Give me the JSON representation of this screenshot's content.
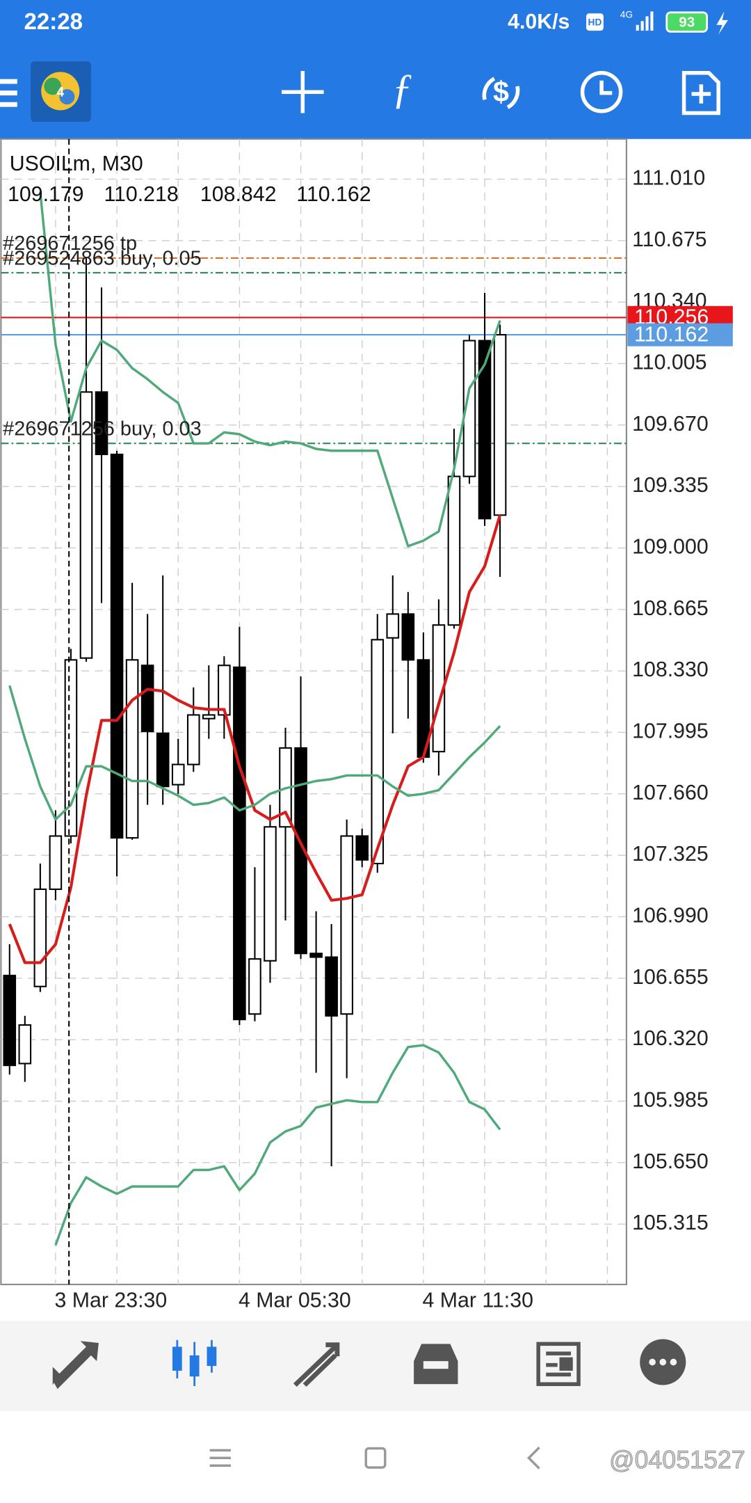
{
  "status_bar": {
    "time": "22:28",
    "speed": "4.0K/s",
    "hd": "HD",
    "network": "4G",
    "battery": "93"
  },
  "chart_data": {
    "type": "candlestick",
    "title": "USOILm, M30",
    "categories": [
      null,
      null,
      null,
      "3 Mar 23:30",
      null,
      null,
      null,
      null,
      null,
      null,
      null,
      null,
      null,
      null,
      null,
      "4 Mar 05:30",
      null,
      null,
      null,
      null,
      null,
      null,
      null,
      null,
      null,
      null,
      null,
      "4 Mar 11:30",
      null,
      null,
      null,
      null,
      null
    ],
    "open": [
      106.67,
      106.19,
      106.61,
      107.14,
      107.43,
      108.4,
      109.85,
      109.51,
      107.42,
      108.36,
      107.99,
      107.71,
      107.82,
      108.07,
      108.09,
      108.35,
      106.46,
      106.75,
      107.48,
      107.91,
      106.79,
      106.77,
      106.46,
      107.43,
      107.28,
      108.51,
      108.64,
      108.39,
      107.89,
      108.58,
      109.39,
      110.13,
      109.179
    ],
    "high": [
      106.84,
      106.45,
      107.28,
      107.57,
      108.45,
      110.58,
      110.42,
      109.53,
      108.81,
      108.64,
      108.85,
      107.96,
      108.24,
      108.36,
      108.41,
      108.57,
      107.26,
      107.6,
      108.02,
      108.3,
      107.02,
      106.95,
      107.52,
      107.47,
      108.64,
      108.85,
      108.76,
      108.54,
      108.72,
      109.65,
      110.16,
      110.39,
      110.218
    ],
    "low": [
      106.13,
      106.09,
      106.58,
      107.08,
      107.39,
      108.38,
      108.7,
      107.21,
      107.41,
      107.6,
      107.6,
      107.66,
      107.78,
      107.96,
      107.96,
      106.4,
      106.42,
      106.63,
      106.97,
      106.76,
      106.14,
      105.63,
      106.11,
      107.26,
      107.23,
      107.99,
      108.07,
      107.83,
      107.76,
      108.56,
      109.35,
      109.12,
      108.842
    ],
    "close": [
      106.18,
      106.4,
      107.14,
      107.43,
      108.39,
      109.85,
      109.51,
      107.42,
      108.39,
      108.0,
      107.7,
      107.82,
      108.09,
      108.09,
      108.36,
      106.43,
      106.76,
      107.48,
      107.91,
      106.79,
      106.77,
      106.45,
      107.43,
      107.3,
      108.5,
      108.64,
      108.39,
      107.86,
      108.58,
      109.39,
      110.13,
      109.16,
      110.162
    ],
    "lines": [
      {
        "color": "#d71c1c",
        "values": [
          106.95,
          106.74,
          106.74,
          106.84,
          107.15,
          107.65,
          108.06,
          108.06,
          108.17,
          108.23,
          108.22,
          108.17,
          108.13,
          108.12,
          108.12,
          107.81,
          107.57,
          107.52,
          107.56,
          107.39,
          107.23,
          107.08,
          107.09,
          107.11,
          107.36,
          107.6,
          107.81,
          107.86,
          108.15,
          108.43,
          108.76,
          108.9,
          109.18
        ]
      },
      {
        "color": "#4fa97a",
        "values": [
          null,
          null,
          110.94,
          110.11,
          109.69,
          109.98,
          110.13,
          110.08,
          109.98,
          109.92,
          109.85,
          109.79,
          109.57,
          109.57,
          109.63,
          109.62,
          109.58,
          109.56,
          109.58,
          109.57,
          109.54,
          109.53,
          109.53,
          109.53,
          109.53,
          109.27,
          109.01,
          109.04,
          109.09,
          109.43,
          109.87,
          110.0,
          110.24
        ]
      },
      {
        "color": "#4fa97a",
        "values": [
          108.25,
          107.96,
          107.7,
          107.52,
          107.6,
          107.81,
          107.81,
          107.77,
          107.73,
          107.73,
          107.69,
          107.65,
          107.6,
          107.61,
          107.64,
          107.57,
          107.6,
          107.66,
          107.69,
          107.71,
          107.73,
          107.74,
          107.76,
          107.76,
          107.76,
          107.7,
          107.65,
          107.66,
          107.68,
          107.77,
          107.86,
          107.94,
          108.03
        ]
      },
      {
        "color": "#4fa97a",
        "values": [
          null,
          null,
          null,
          105.2,
          105.43,
          105.57,
          105.52,
          105.48,
          105.52,
          105.52,
          105.52,
          105.52,
          105.61,
          105.61,
          105.63,
          105.5,
          105.59,
          105.76,
          105.82,
          105.85,
          105.95,
          105.97,
          105.99,
          105.98,
          105.98,
          106.14,
          106.28,
          106.29,
          106.25,
          106.14,
          105.98,
          105.94,
          105.83
        ]
      }
    ],
    "orders": [
      {
        "label": "#269671256 tp",
        "value": 110.58,
        "color": "#d2691e"
      },
      {
        "label": "#269524863 buy, 0.05",
        "value": 110.5,
        "color": "#2e8b57"
      },
      {
        "label": "#269671256 buy, 0.03",
        "value": 109.57,
        "color": "#2e8b57"
      }
    ],
    "levels": [
      {
        "value": 110.256,
        "color": "#e8161b"
      },
      {
        "value": 110.162,
        "color": "#5b9de0"
      }
    ],
    "ylim": [
      104.986,
      111.229
    ],
    "yticks": [
      {
        "value": 111.01,
        "label": "111.010"
      },
      110.675,
      {
        "value": 110.34,
        "label": "110.340"
      },
      {
        "value": 110.005,
        "label": "110.005"
      },
      {
        "value": 109.67,
        "label": "109.670"
      },
      109.335,
      {
        "value": 109,
        "label": "109.000"
      },
      108.665,
      {
        "value": 108.33,
        "label": "108.330"
      },
      107.995,
      {
        "value": 107.66,
        "label": "107.660"
      },
      107.325,
      {
        "value": 106.99,
        "label": "106.990"
      },
      106.655,
      {
        "value": 106.32,
        "label": "106.320"
      },
      105.985,
      {
        "value": 105.65,
        "label": "105.650"
      },
      105.315
    ],
    "grid": true
  },
  "watermark": "@04051527"
}
